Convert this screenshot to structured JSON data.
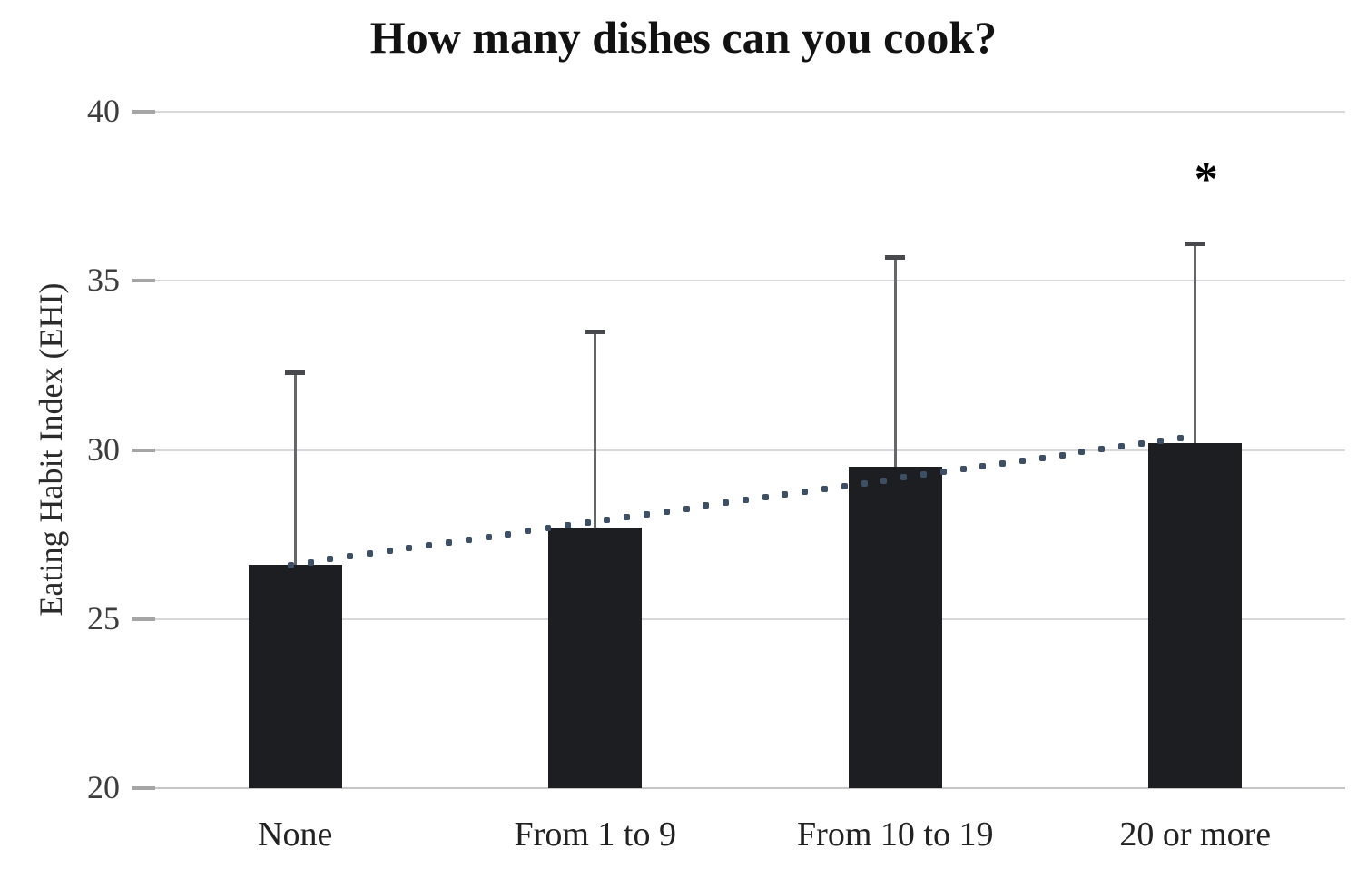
{
  "chart_data": {
    "type": "bar",
    "title": "How many dishes can you cook?",
    "ylabel": "Eating Habit Index (EHI)",
    "xlabel": "",
    "categories": [
      "None",
      "From 1 to 9",
      "From 10 to 19",
      "20 or more"
    ],
    "values": [
      26.6,
      27.7,
      29.5,
      30.2
    ],
    "error_upper": [
      5.7,
      5.8,
      6.2,
      5.9
    ],
    "error_top_values": [
      32.3,
      33.5,
      35.7,
      36.1
    ],
    "ylim": [
      20,
      40
    ],
    "yticks": [
      20,
      25,
      30,
      35,
      40
    ],
    "grid": true,
    "legend": false,
    "trendline": {
      "from_category_index": 0,
      "from_value": 26.6,
      "to_category_index": 3,
      "to_value": 30.35
    },
    "significance": {
      "category_index": 3,
      "marker": "*"
    },
    "colors": {
      "bar": "#1d1e22",
      "gridline": "#d8d8d8",
      "baseline": "#c6c6c6",
      "tick": "#a5a5a5",
      "error_stem": "#66676b",
      "error_cap": "#48494d",
      "trend_dot": "#3d4f65"
    }
  }
}
